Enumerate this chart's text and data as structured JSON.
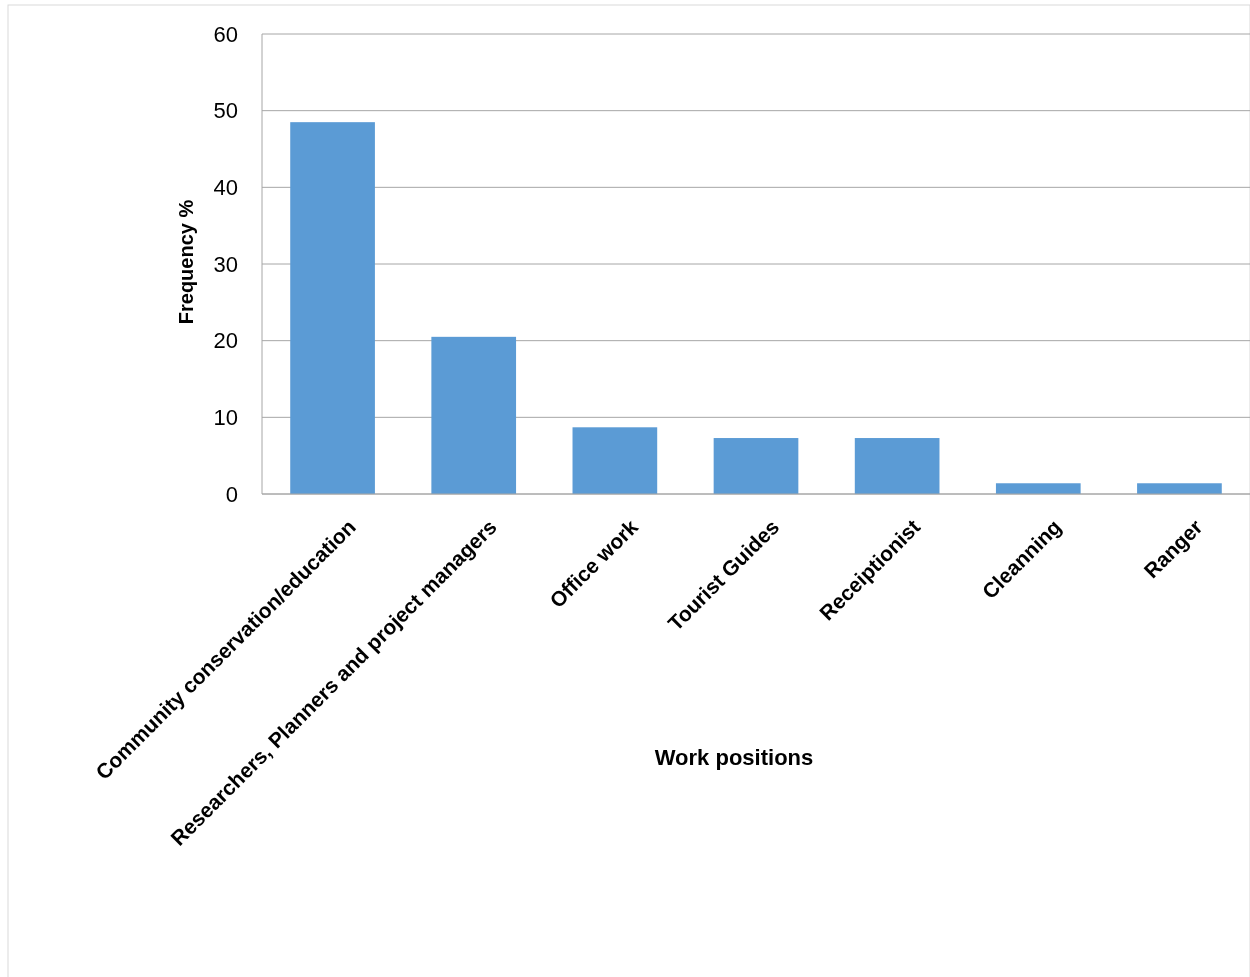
{
  "chart_data": {
    "type": "bar",
    "xlabel": "Work positions",
    "ylabel": "Frequency %",
    "categories": [
      "Community conservation/education",
      "Researchers, Planners and project managers",
      "Office work",
      "Tourist Guides",
      "Receiptionist",
      "Cleanning",
      "Ranger"
    ],
    "values": [
      48.5,
      20.5,
      8.7,
      7.3,
      7.3,
      1.4,
      1.4
    ],
    "color": "#5b9bd5",
    "ylim": [
      0,
      60
    ],
    "yticks": [
      0,
      10,
      20,
      30,
      40,
      50,
      60
    ],
    "grid": "y"
  }
}
